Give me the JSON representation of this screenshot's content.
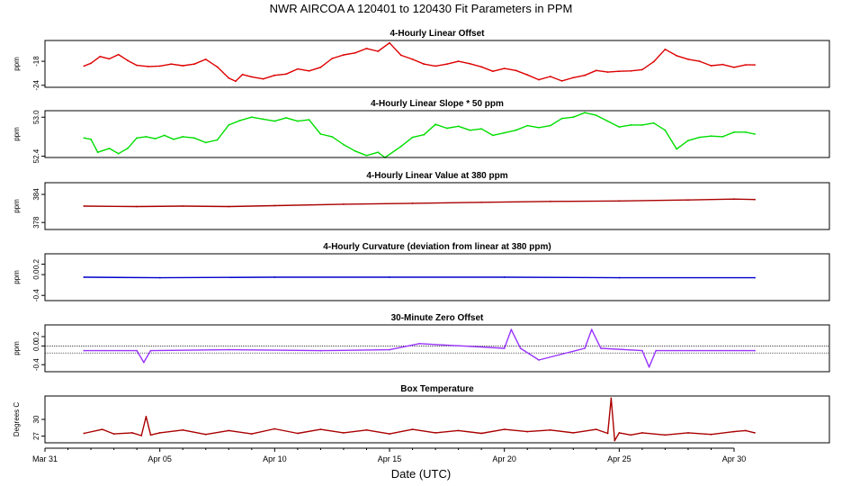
{
  "title": "NWR   AIRCOA A   120401 to 120430   Fit Parameters in PPM",
  "xlabel": "Date (UTC)",
  "x_ticks": [
    "Mar 31",
    "Apr 05",
    "Apr 10",
    "Apr 15",
    "Apr 20",
    "Apr 25",
    "Apr 30"
  ],
  "chart_data": [
    {
      "type": "line",
      "title": "4-Hourly Linear Offset",
      "ylabel": "ppm",
      "yticks": [
        "-24",
        "-18"
      ],
      "ylim": [
        -24.5,
        -12.8
      ],
      "color": "#dd0000",
      "series": [
        {
          "x": [
            1.7,
            2.0,
            2.4,
            2.8,
            3.2,
            3.6,
            4.0,
            4.5,
            5.0,
            5.5,
            6.0,
            6.5,
            7.0,
            7.5,
            8.0,
            8.3,
            8.6,
            9.0,
            9.5,
            10.0,
            10.5,
            11.0,
            11.5,
            12.0,
            12.5,
            13.0,
            13.5,
            14.0,
            14.5,
            15.0,
            15.5,
            16.0,
            16.5,
            17.0,
            17.5,
            18.0,
            18.5,
            19.0,
            19.5,
            20.0,
            20.5,
            21.0,
            21.5,
            22.0,
            22.5,
            23.0,
            23.5,
            24.0,
            24.5,
            25.0,
            25.5,
            26.0,
            26.5,
            27.0,
            27.5,
            28.0,
            28.5,
            29.0,
            29.5,
            30.0,
            30.5,
            30.9
          ],
          "values": [
            -19.2,
            -18.5,
            -16.8,
            -17.4,
            -16.3,
            -17.8,
            -19.0,
            -19.3,
            -19.2,
            -18.7,
            -19.1,
            -18.7,
            -17.5,
            -19.4,
            -22.2,
            -23.0,
            -21.3,
            -21.9,
            -22.4,
            -21.5,
            -21.2,
            -19.9,
            -20.4,
            -19.5,
            -17.3,
            -16.4,
            -15.9,
            -14.8,
            -15.5,
            -13.4,
            -16.5,
            -17.5,
            -18.7,
            -19.2,
            -18.7,
            -18.0,
            -18.6,
            -19.4,
            -20.5,
            -19.8,
            -20.3,
            -21.4,
            -22.6,
            -21.8,
            -22.9,
            -22.1,
            -21.5,
            -20.3,
            -20.7,
            -20.5,
            -20.4,
            -20.1,
            -18.1,
            -15.0,
            -16.6,
            -17.5,
            -18.0,
            -19.1,
            -18.8,
            -19.5,
            -18.9,
            -18.9
          ]
        }
      ]
    },
    {
      "type": "line",
      "title": "4-Hourly Linear Slope * 50 ppm",
      "ylabel": "ppm",
      "yticks": [
        "52.4",
        "53.0"
      ],
      "ylim": [
        52.38,
        53.1
      ],
      "color": "#00dd00",
      "series": [
        {
          "x": [
            1.7,
            2.0,
            2.3,
            2.8,
            3.2,
            3.6,
            4.0,
            4.4,
            4.8,
            5.2,
            5.6,
            6.0,
            6.5,
            7.0,
            7.5,
            8.0,
            8.5,
            9.0,
            9.5,
            10.0,
            10.5,
            11.0,
            11.5,
            12.0,
            12.5,
            13.0,
            13.5,
            14.0,
            14.5,
            14.8,
            15.5,
            16.0,
            16.5,
            17.0,
            17.5,
            18.0,
            18.5,
            19.0,
            19.5,
            20.0,
            20.5,
            21.0,
            21.5,
            22.0,
            22.5,
            23.0,
            23.5,
            24.0,
            24.5,
            25.0,
            25.5,
            26.0,
            26.5,
            27.0,
            27.5,
            28.0,
            28.5,
            29.0,
            29.5,
            30.0,
            30.5,
            30.9
          ],
          "values": [
            52.68,
            52.66,
            52.46,
            52.52,
            52.44,
            52.52,
            52.68,
            52.7,
            52.67,
            52.72,
            52.66,
            52.7,
            52.68,
            52.61,
            52.65,
            52.88,
            52.95,
            53.0,
            52.97,
            52.94,
            52.99,
            52.94,
            52.96,
            52.74,
            52.7,
            52.58,
            52.48,
            52.41,
            52.46,
            52.38,
            52.55,
            52.69,
            52.73,
            52.89,
            52.83,
            52.86,
            52.8,
            52.82,
            52.72,
            52.76,
            52.8,
            52.87,
            52.84,
            52.87,
            52.98,
            53.0,
            53.07,
            53.03,
            52.94,
            52.85,
            52.88,
            52.88,
            52.91,
            52.8,
            52.51,
            52.64,
            52.69,
            52.71,
            52.7,
            52.77,
            52.77,
            52.74
          ]
        }
      ]
    },
    {
      "type": "line",
      "title": "4-Hourly Linear Value at 380 ppm",
      "ylabel": "ppm",
      "yticks": [
        "378",
        "384"
      ],
      "ylim": [
        376.5,
        386.5
      ],
      "color": "#aa0000",
      "series": [
        {
          "x": [
            1.7,
            4.0,
            6.0,
            8.0,
            10.0,
            13.0,
            16.0,
            19.0,
            22.0,
            25.0,
            28.0,
            30.0,
            30.9
          ],
          "values": [
            381.5,
            381.4,
            381.5,
            381.4,
            381.6,
            381.9,
            382.1,
            382.3,
            382.5,
            382.6,
            382.8,
            383.0,
            382.9
          ]
        }
      ]
    },
    {
      "type": "line",
      "title": "4-Hourly Curvature (deviation from linear at 380 ppm)",
      "ylabel": "ppm",
      "yticks": [
        "-0.4",
        "0.0",
        "0.2"
      ],
      "ylim": [
        -0.5,
        0.4
      ],
      "color": "#0000cc",
      "series": [
        {
          "x": [
            1.7,
            5.0,
            10.0,
            15.0,
            20.0,
            25.0,
            30.9
          ],
          "values": [
            -0.05,
            -0.06,
            -0.05,
            -0.05,
            -0.05,
            -0.06,
            -0.06
          ]
        }
      ]
    },
    {
      "type": "line",
      "title": "30-Minute Zero Offset",
      "ylabel": "ppm",
      "yticks": [
        "-0.4",
        "0.0",
        "0.2"
      ],
      "ylim": [
        -0.55,
        0.45
      ],
      "reference_lines": [
        0.0,
        -0.15
      ],
      "color": "#9933ff",
      "series": [
        {
          "x": [
            1.7,
            4.0,
            4.3,
            4.6,
            8.0,
            12.0,
            15.0,
            16.3,
            20.0,
            20.3,
            20.7,
            21.5,
            23.5,
            23.8,
            24.2,
            26.0,
            26.3,
            26.6,
            30.9
          ],
          "values": [
            -0.1,
            -0.1,
            -0.35,
            -0.1,
            -0.08,
            -0.1,
            -0.08,
            0.05,
            -0.05,
            0.35,
            -0.05,
            -0.3,
            -0.05,
            0.35,
            -0.05,
            -0.1,
            -0.45,
            -0.1,
            -0.1
          ]
        }
      ]
    },
    {
      "type": "line",
      "title": "Box Temperature",
      "ylabel": "Degrees C",
      "yticks": [
        "27",
        "30"
      ],
      "ylim": [
        25.8,
        34.2
      ],
      "color": "#aa0000",
      "series": [
        {
          "x": [
            1.7,
            2.5,
            3.0,
            3.8,
            4.2,
            4.4,
            4.6,
            5.0,
            6.0,
            7.0,
            8.0,
            9.0,
            10.0,
            11.0,
            12.0,
            13.0,
            14.0,
            15.0,
            16.0,
            17.0,
            18.0,
            19.0,
            20.0,
            21.0,
            22.0,
            23.0,
            24.0,
            24.5,
            24.65,
            24.8,
            25.0,
            25.5,
            26.0,
            27.0,
            28.0,
            29.0,
            30.0,
            30.5,
            30.9
          ],
          "values": [
            27.5,
            28.2,
            27.4,
            27.6,
            27.1,
            30.5,
            27.2,
            27.6,
            28.1,
            27.3,
            28.0,
            27.4,
            28.3,
            27.5,
            28.2,
            27.6,
            28.1,
            27.4,
            28.2,
            27.6,
            28.0,
            27.5,
            28.2,
            27.8,
            28.1,
            27.6,
            28.2,
            27.5,
            33.8,
            26.2,
            27.6,
            27.2,
            27.6,
            27.2,
            27.6,
            27.3,
            27.8,
            28.0,
            27.6
          ]
        }
      ]
    }
  ]
}
